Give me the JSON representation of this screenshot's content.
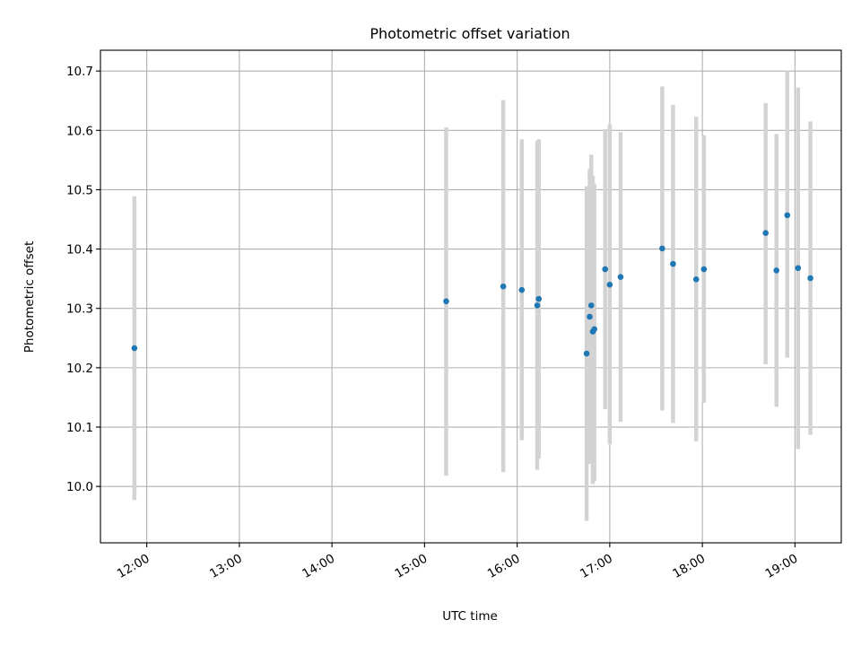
{
  "chart_data": {
    "type": "scatter",
    "title": "Photometric offset variation",
    "xlabel": "UTC time",
    "ylabel": "Photometric offset",
    "x_ticks": [
      "12:00",
      "13:00",
      "14:00",
      "15:00",
      "16:00",
      "17:00",
      "18:00",
      "19:00"
    ],
    "y_ticks": [
      "10.0",
      "10.1",
      "10.2",
      "10.3",
      "10.4",
      "10.5",
      "10.6",
      "10.7"
    ],
    "xlim": [
      "11:30",
      "19:30"
    ],
    "ylim": [
      9.905,
      10.735
    ],
    "grid": true,
    "marker_color": "#1f77b4",
    "errorbar_color": "#d3d3d3",
    "points": [
      {
        "x": "11:52",
        "y": 10.233,
        "y_low": 9.977,
        "y_high": 10.489
      },
      {
        "x": "15:14",
        "y": 10.312,
        "y_low": 10.018,
        "y_high": 10.605
      },
      {
        "x": "15:51",
        "y": 10.337,
        "y_low": 10.024,
        "y_high": 10.651
      },
      {
        "x": "16:03",
        "y": 10.331,
        "y_low": 10.078,
        "y_high": 10.585
      },
      {
        "x": "16:13",
        "y": 10.305,
        "y_low": 10.028,
        "y_high": 10.582
      },
      {
        "x": "16:14",
        "y": 10.316,
        "y_low": 10.047,
        "y_high": 10.585
      },
      {
        "x": "16:45",
        "y": 10.224,
        "y_low": 9.942,
        "y_high": 10.506
      },
      {
        "x": "16:47",
        "y": 10.286,
        "y_low": 10.038,
        "y_high": 10.535
      },
      {
        "x": "16:48",
        "y": 10.305,
        "y_low": 10.051,
        "y_high": 10.559
      },
      {
        "x": "16:49",
        "y": 10.261,
        "y_low": 10.004,
        "y_high": 10.524
      },
      {
        "x": "16:50",
        "y": 10.265,
        "y_low": 10.009,
        "y_high": 10.51
      },
      {
        "x": "16:57",
        "y": 10.366,
        "y_low": 10.13,
        "y_high": 10.602
      },
      {
        "x": "17:00",
        "y": 10.34,
        "y_low": 10.071,
        "y_high": 10.61
      },
      {
        "x": "17:07",
        "y": 10.353,
        "y_low": 10.109,
        "y_high": 10.597
      },
      {
        "x": "17:34",
        "y": 10.401,
        "y_low": 10.128,
        "y_high": 10.674
      },
      {
        "x": "17:41",
        "y": 10.375,
        "y_low": 10.107,
        "y_high": 10.643
      },
      {
        "x": "17:56",
        "y": 10.349,
        "y_low": 10.076,
        "y_high": 10.623
      },
      {
        "x": "18:01",
        "y": 10.366,
        "y_low": 10.141,
        "y_high": 10.592
      },
      {
        "x": "18:41",
        "y": 10.427,
        "y_low": 10.206,
        "y_high": 10.646
      },
      {
        "x": "18:48",
        "y": 10.364,
        "y_low": 10.134,
        "y_high": 10.594
      },
      {
        "x": "18:55",
        "y": 10.457,
        "y_low": 10.217,
        "y_high": 10.7
      },
      {
        "x": "19:02",
        "y": 10.368,
        "y_low": 10.063,
        "y_high": 10.672
      },
      {
        "x": "19:10",
        "y": 10.351,
        "y_low": 10.087,
        "y_high": 10.615
      }
    ]
  }
}
